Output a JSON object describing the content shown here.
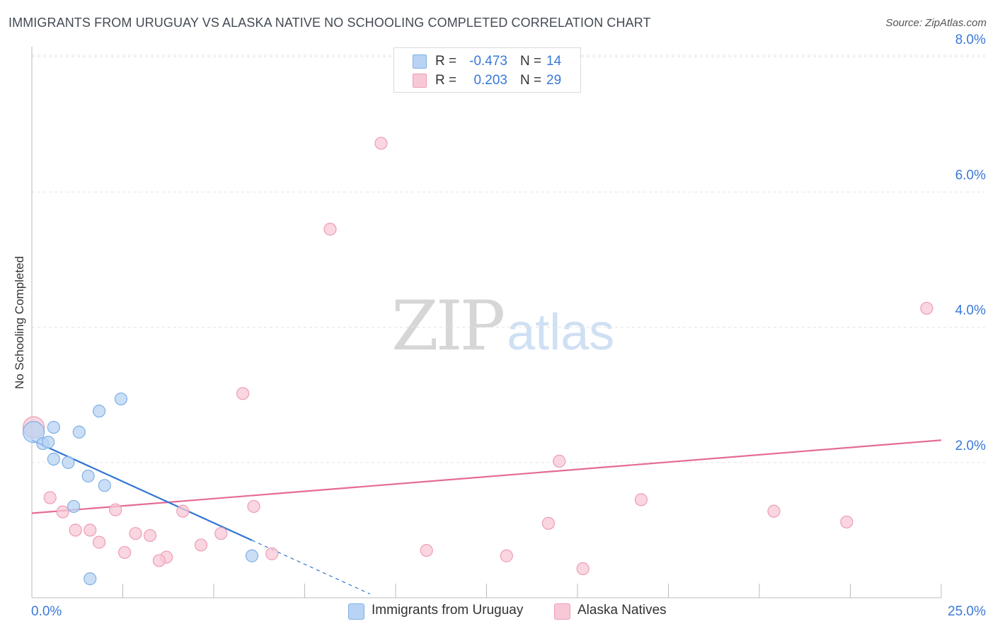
{
  "header": {
    "title": "IMMIGRANTS FROM URUGUAY VS ALASKA NATIVE NO SCHOOLING COMPLETED CORRELATION CHART",
    "source": "Source: ZipAtlas.com"
  },
  "watermark": {
    "zip": "ZIP",
    "atlas": "atlas"
  },
  "stats": {
    "rows": [
      {
        "r_label": "R =",
        "r_value": "-0.473",
        "n_label": "N =",
        "n_value": "14"
      },
      {
        "r_label": "R =",
        "r_value": "0.203",
        "n_label": "N =",
        "n_value": "29"
      }
    ]
  },
  "legend": {
    "items": [
      {
        "label": "Immigrants from Uruguay"
      },
      {
        "label": "Alaska Natives"
      }
    ]
  },
  "colors": {
    "blue_fill": "#b8d3f3",
    "blue_stroke": "#7fb0e6",
    "blue_line": "#2f74d4",
    "pink_fill": "#f7c8d6",
    "pink_stroke": "#ee9db6",
    "pink_line": "#e56b93",
    "tick_label": "#3a78d8",
    "grid": "#e4e4e4"
  },
  "chart_data": {
    "type": "scatter",
    "title": "IMMIGRANTS FROM URUGUAY VS ALASKA NATIVE NO SCHOOLING COMPLETED CORRELATION CHART",
    "xlabel": "",
    "ylabel": "No Schooling Completed",
    "xlim": [
      0,
      25
    ],
    "ylim": [
      0,
      8.2
    ],
    "x_tick_labels": [
      "0.0%",
      "25.0%"
    ],
    "y_ticks": [
      2,
      4,
      6,
      8
    ],
    "y_tick_labels": [
      "2.0%",
      "4.0%",
      "6.0%",
      "8.0%"
    ],
    "grid": true,
    "series": [
      {
        "name": "Immigrants from Uruguay",
        "color": "#b8d3f3",
        "points": [
          {
            "x": 0.05,
            "y": 2.45,
            "big": true
          },
          {
            "x": 0.3,
            "y": 2.28
          },
          {
            "x": 0.45,
            "y": 2.3
          },
          {
            "x": 0.6,
            "y": 2.52
          },
          {
            "x": 1.3,
            "y": 2.45
          },
          {
            "x": 1.85,
            "y": 2.76
          },
          {
            "x": 2.45,
            "y": 2.94
          },
          {
            "x": 0.6,
            "y": 2.05
          },
          {
            "x": 1.0,
            "y": 2.0
          },
          {
            "x": 1.55,
            "y": 1.8
          },
          {
            "x": 2.0,
            "y": 1.66
          },
          {
            "x": 1.15,
            "y": 1.35
          },
          {
            "x": 6.05,
            "y": 0.62
          },
          {
            "x": 1.6,
            "y": 0.28
          }
        ],
        "trend": {
          "x0": 0.0,
          "y0": 2.33,
          "x1": 6.05,
          "y1": 0.85,
          "x_dash_end": 9.3
        }
      },
      {
        "name": "Alaska Natives",
        "color": "#f7c8d6",
        "points": [
          {
            "x": 0.05,
            "y": 2.52,
            "big": true
          },
          {
            "x": 9.6,
            "y": 6.72
          },
          {
            "x": 8.2,
            "y": 5.45
          },
          {
            "x": 24.6,
            "y": 4.28
          },
          {
            "x": 5.8,
            "y": 3.02
          },
          {
            "x": 14.5,
            "y": 2.02
          },
          {
            "x": 0.5,
            "y": 1.48
          },
          {
            "x": 0.85,
            "y": 1.27
          },
          {
            "x": 2.3,
            "y": 1.3
          },
          {
            "x": 4.15,
            "y": 1.28
          },
          {
            "x": 6.1,
            "y": 1.35
          },
          {
            "x": 16.75,
            "y": 1.45
          },
          {
            "x": 20.4,
            "y": 1.28
          },
          {
            "x": 22.4,
            "y": 1.12
          },
          {
            "x": 14.2,
            "y": 1.1
          },
          {
            "x": 1.2,
            "y": 1.0
          },
          {
            "x": 1.6,
            "y": 1.0
          },
          {
            "x": 2.85,
            "y": 0.95
          },
          {
            "x": 3.25,
            "y": 0.92
          },
          {
            "x": 5.2,
            "y": 0.95
          },
          {
            "x": 1.85,
            "y": 0.82
          },
          {
            "x": 4.65,
            "y": 0.78
          },
          {
            "x": 2.55,
            "y": 0.67
          },
          {
            "x": 6.6,
            "y": 0.65
          },
          {
            "x": 3.7,
            "y": 0.6
          },
          {
            "x": 3.5,
            "y": 0.55
          },
          {
            "x": 10.85,
            "y": 0.7
          },
          {
            "x": 13.05,
            "y": 0.62
          },
          {
            "x": 15.15,
            "y": 0.43
          }
        ],
        "trend": {
          "x0": 0.0,
          "y0": 1.25,
          "x1": 25.0,
          "y1": 2.33
        }
      }
    ]
  }
}
